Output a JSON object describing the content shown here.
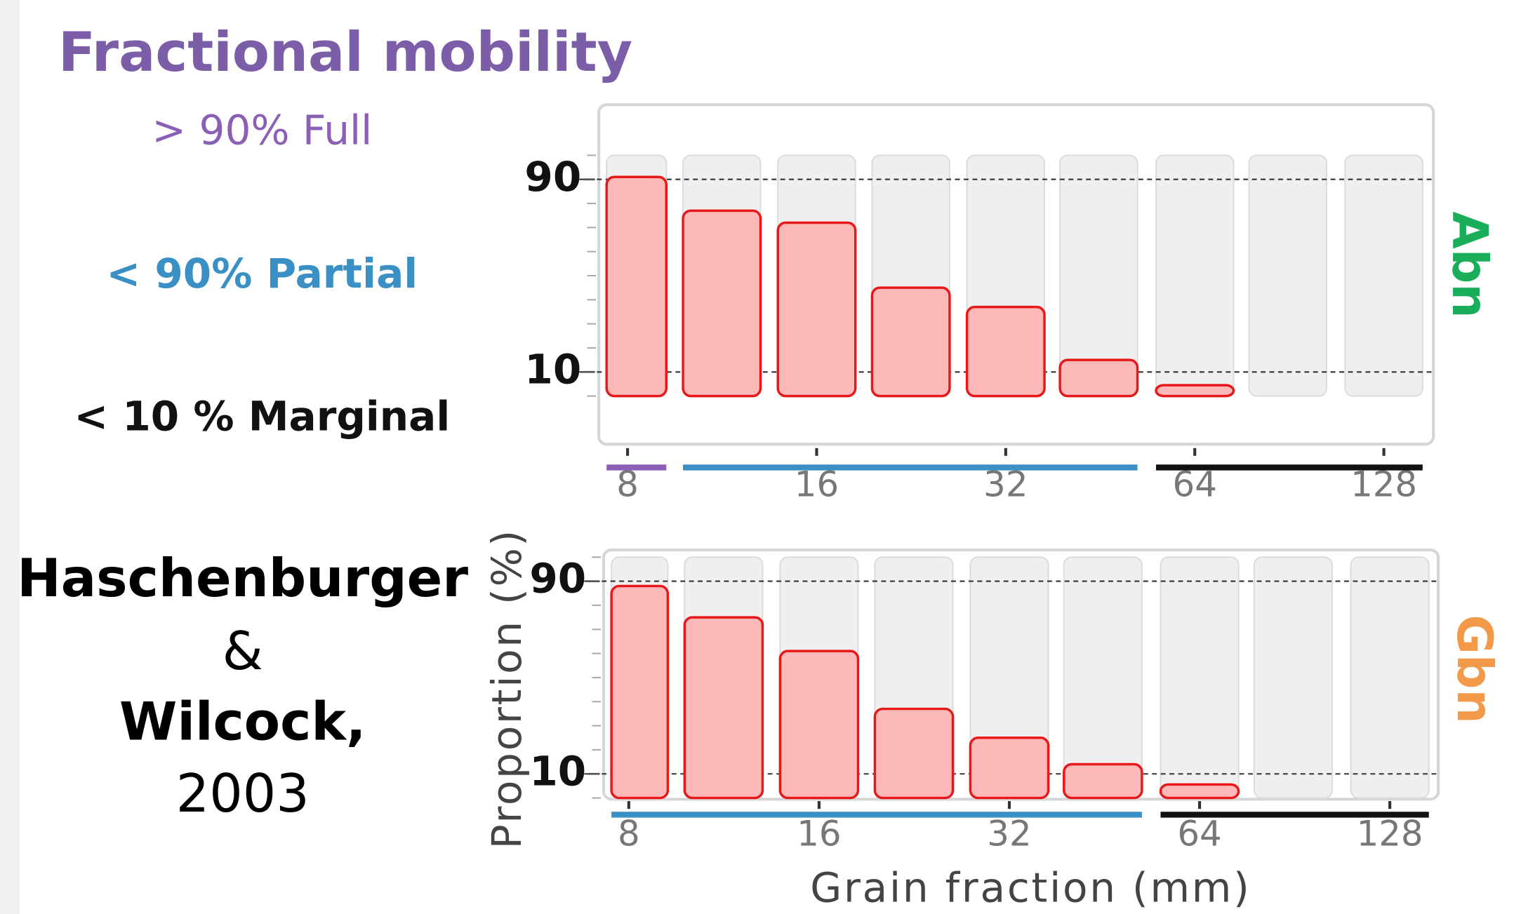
{
  "header": {
    "title": "Fractional mobility",
    "legend": [
      {
        "label": "> 90% Full",
        "color": "#8a5fb5"
      },
      {
        "label": "< 90% Partial",
        "color": "#3a8fc4"
      },
      {
        "label": "< 10 % Marginal",
        "color": "#111111"
      }
    ],
    "citation": [
      "Haschenburger",
      "&",
      "Wilcock,",
      "2003"
    ],
    "ylabel": "Proportion (%)",
    "xlabel": "Grain fraction (mm)"
  },
  "chart_data": [
    {
      "type": "bar",
      "facet": "Abn",
      "facet_color": "#1aae5a",
      "log_x": true,
      "x": [
        8,
        11.3,
        16,
        22.6,
        32,
        45,
        64,
        90,
        128
      ],
      "values": [
        91,
        77,
        72,
        45,
        37,
        15,
        4.5,
        0,
        0
      ],
      "classes": [
        0,
        1,
        1,
        1,
        1,
        1,
        2,
        2,
        2
      ],
      "xlim": [
        7.2,
        153.5
      ],
      "xticks": [
        8,
        16,
        32,
        64,
        128
      ],
      "ylim": [
        -20,
        121
      ],
      "yticks": [
        10,
        90
      ],
      "yminor": [
        0,
        20,
        30,
        40,
        50,
        60,
        70,
        80,
        100
      ],
      "bar_color": "#fdb8b8",
      "bar_edge": "#e81818",
      "background_color": "#efefef"
    },
    {
      "type": "bar",
      "facet": "Gbn",
      "facet_color": "#f39a4a",
      "log_x": true,
      "x": [
        8,
        11.3,
        16,
        22.6,
        32,
        45,
        64,
        90,
        128
      ],
      "values": [
        88,
        75,
        61,
        37,
        25,
        14,
        5.6,
        0,
        0
      ],
      "classes": [
        1,
        1,
        1,
        1,
        1,
        1,
        2,
        2,
        2
      ],
      "xlim": [
        7.3,
        152.7
      ],
      "xticks": [
        8,
        16,
        32,
        64,
        128
      ],
      "ylim": [
        -0.5,
        103
      ],
      "yticks": [
        10,
        90
      ],
      "yminor": [
        0,
        20,
        30,
        40,
        50,
        60,
        70,
        80,
        100
      ],
      "bar_color": "#fdb8b8",
      "bar_edge": "#e81818",
      "background_color": "#efefef"
    }
  ]
}
